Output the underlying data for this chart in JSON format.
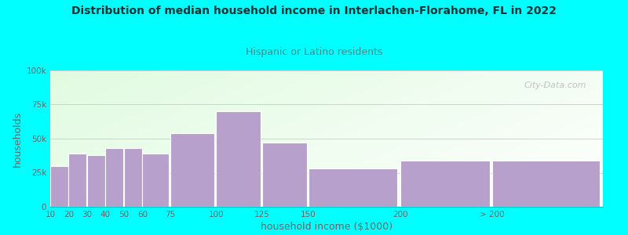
{
  "title": "Distribution of median household income in Interlachen-Florahome, FL in 2022",
  "subtitle": "Hispanic or Latino residents",
  "xlabel": "household income ($1000)",
  "ylabel": "households",
  "background_color": "#00FFFF",
  "plot_bg_color_topleft": "#d8f0dc",
  "plot_bg_color_right": "#f5f8f2",
  "plot_bg_color_bottom": "#ffffff",
  "bar_color": "#b8a0cc",
  "bar_edge_color": "#ffffff",
  "title_color": "#003333",
  "subtitle_color": "#448888",
  "axis_label_color": "#666666",
  "tick_label_color": "#666666",
  "watermark": "City-Data.com",
  "categories": [
    "10",
    "20",
    "30",
    "40",
    "50",
    "60",
    "75",
    "100",
    "125",
    "150",
    "200",
    "> 200"
  ],
  "values": [
    30000,
    39000,
    38000,
    43000,
    43000,
    39000,
    54000,
    70000,
    47000,
    28000,
    34000,
    34000
  ],
  "x_positions": [
    10,
    20,
    30,
    40,
    50,
    60,
    75,
    100,
    125,
    150,
    200,
    250
  ],
  "bar_widths": [
    10,
    10,
    10,
    10,
    10,
    15,
    25,
    25,
    25,
    50,
    50,
    60
  ],
  "xlim": [
    10,
    310
  ],
  "ylim": [
    0,
    100000
  ],
  "yticks": [
    0,
    25000,
    50000,
    75000,
    100000
  ],
  "ytick_labels": [
    "0",
    "25k",
    "50k",
    "75k",
    "100k"
  ],
  "xtick_positions": [
    10,
    20,
    30,
    40,
    50,
    60,
    75,
    100,
    125,
    150,
    200,
    250
  ]
}
